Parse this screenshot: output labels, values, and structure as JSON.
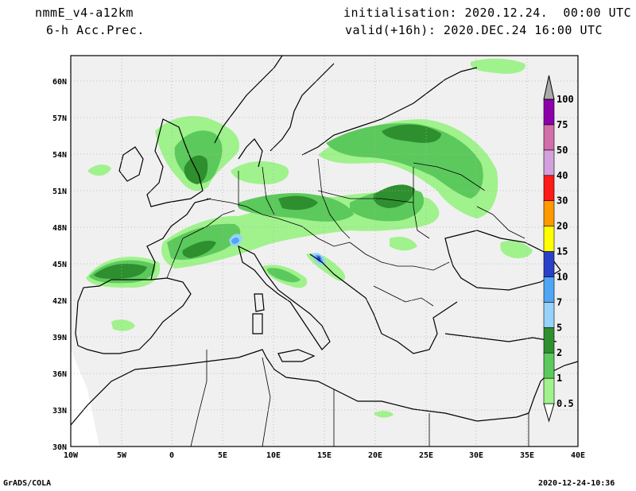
{
  "header": {
    "model": "nmmE_v4-a12km",
    "field": "6-h Acc.Prec.",
    "init": "initialisation: 2020.12.24.  00:00 UTC",
    "valid": "valid(+16h): 2020.DEC.24 16:00 UTC"
  },
  "footer": {
    "software": "GrADS/COLA",
    "timestamp": "2020-12-24-10:36"
  },
  "axes": {
    "lon_labels": [
      "10W",
      "5W",
      "0",
      "5E",
      "10E",
      "15E",
      "20E",
      "25E",
      "30E",
      "35E",
      "40E"
    ],
    "lat_labels": [
      "30N",
      "33N",
      "36N",
      "39N",
      "42N",
      "45N",
      "48N",
      "51N",
      "54N",
      "57N",
      "60N"
    ]
  },
  "legend": {
    "levels": [
      {
        "label": "0.5",
        "color": "#a0f28c"
      },
      {
        "label": "1",
        "color": "#5cc95c"
      },
      {
        "label": "2",
        "color": "#2e8f2e"
      },
      {
        "label": "5",
        "color": "#96d2fa"
      },
      {
        "label": "7",
        "color": "#50a5f5"
      },
      {
        "label": "10",
        "color": "#2a40c8"
      },
      {
        "label": "15",
        "color": "#ffff00"
      },
      {
        "label": "20",
        "color": "#ff9900"
      },
      {
        "label": "30",
        "color": "#ff1a1a"
      },
      {
        "label": "40",
        "color": "#d2a0dc"
      },
      {
        "label": "50",
        "color": "#d26eaa"
      },
      {
        "label": "75",
        "color": "#8c00aa"
      },
      {
        "label": "100",
        "color": "#aaaaaa"
      }
    ]
  },
  "colors": {
    "land_background": "#f0f0f0",
    "coast": "#000000",
    "grid": "#b0b0b0"
  }
}
